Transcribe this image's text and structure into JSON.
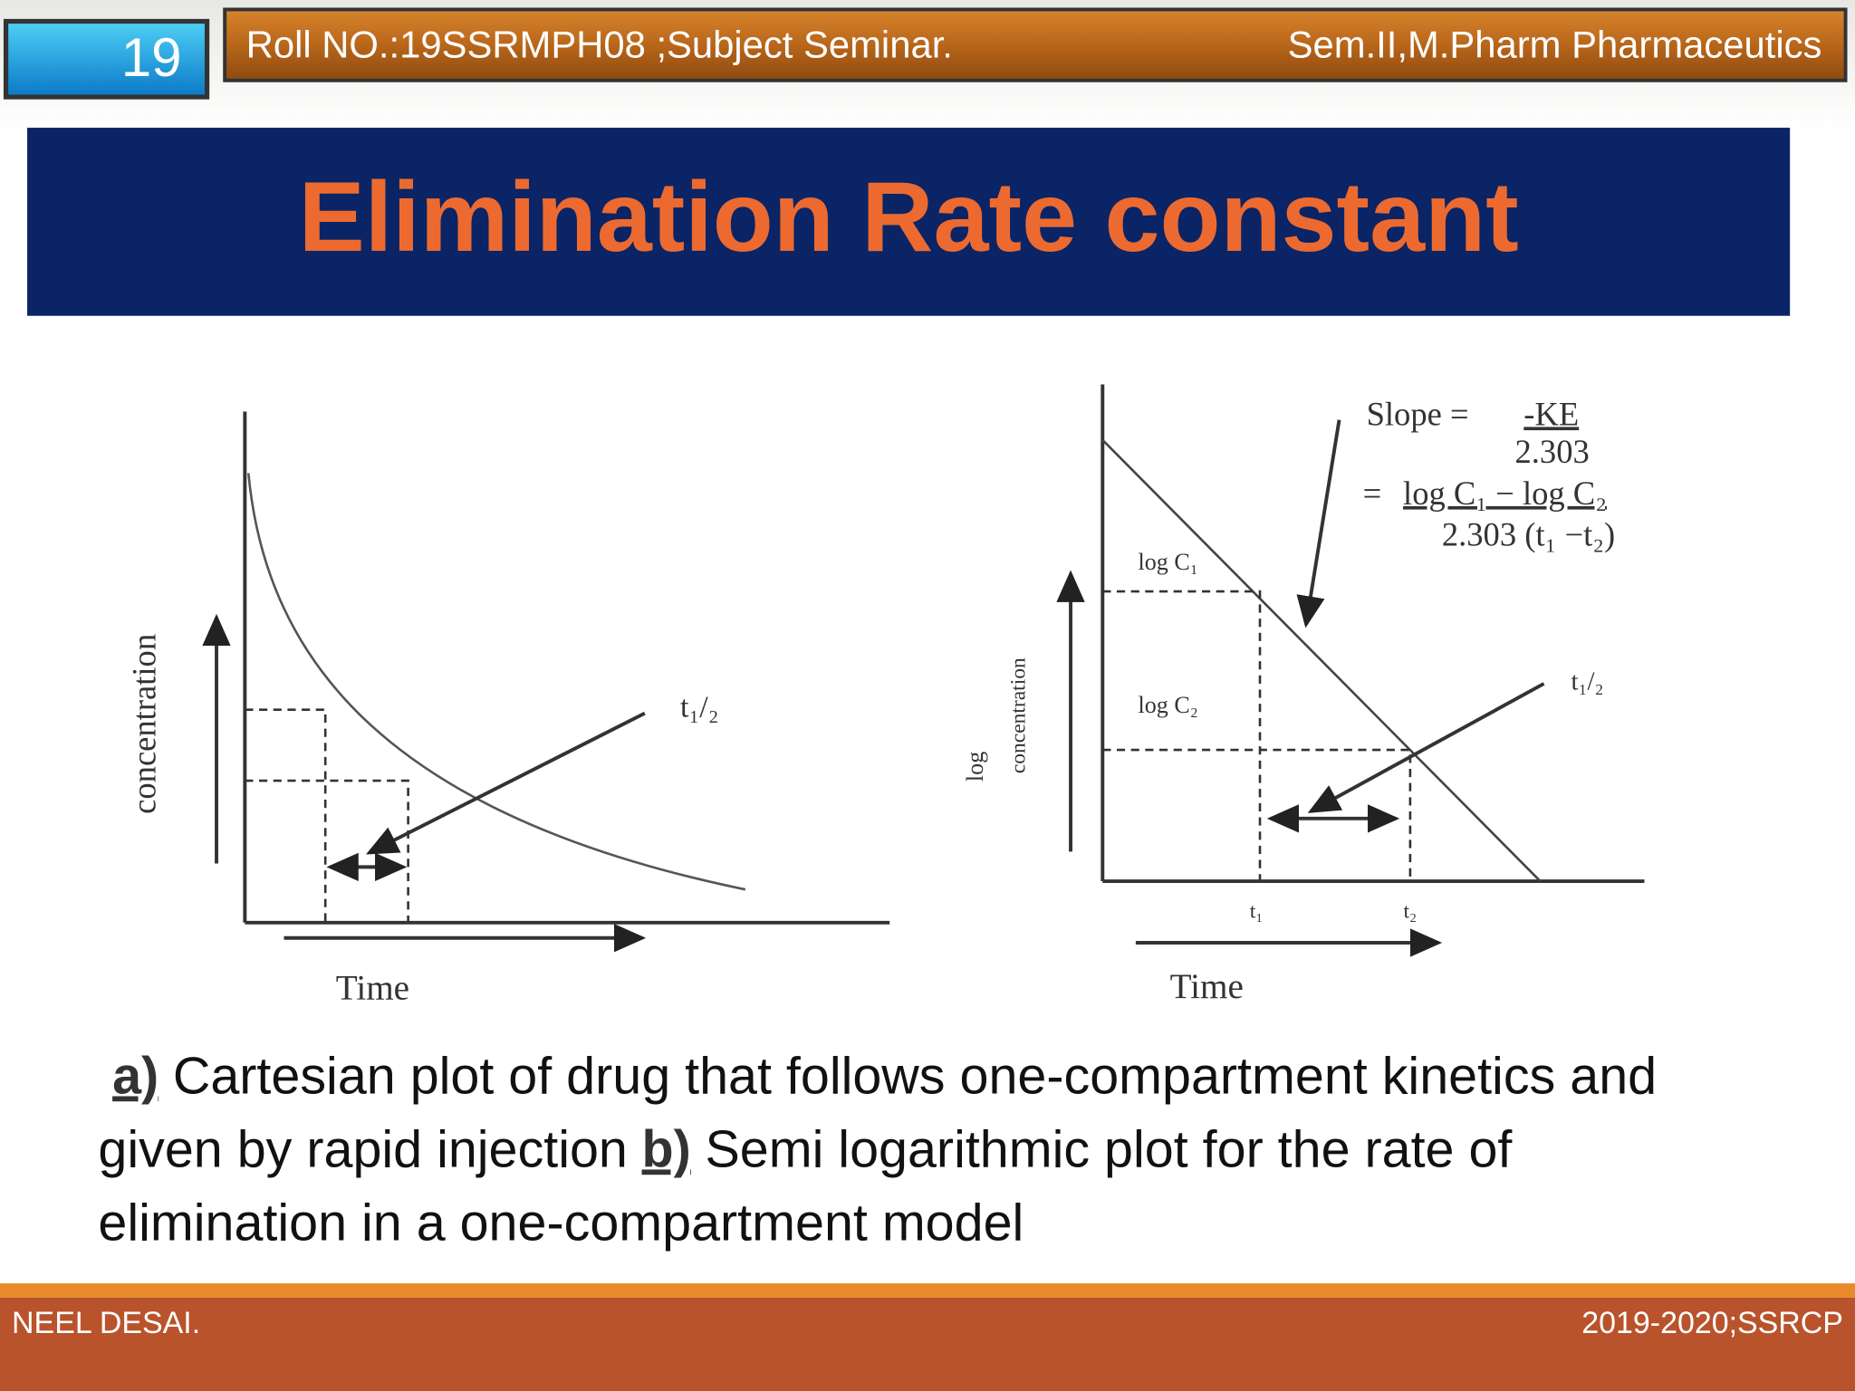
{
  "header": {
    "slide_number": "19",
    "roll": "Roll NO.:19SSRMPH08 ;Subject Seminar.",
    "course": "Sem.II,M.Pharm Pharmaceutics"
  },
  "title": "Elimination Rate constant",
  "figure_a": {
    "y_label": "concentration",
    "x_label": "Time",
    "half_life": "t₁/₂"
  },
  "figure_b": {
    "y_label_1": "log",
    "y_label_2": "concentration",
    "x_label": "Time",
    "half_life": "t₁/₂",
    "level_1": "log C₁",
    "level_2": "log C₂",
    "t_1": "t₁",
    "t_2": "t₂",
    "slope_label": "Slope =",
    "slope_num": "-KE",
    "slope_den": "2.303",
    "equals": "=",
    "slope_num_2": "log C₁ − log C₂",
    "slope_den_2": "2.303 (t₁ −t₂)"
  },
  "caption": {
    "a_label": "a)",
    "a_text_1": "Cartesian plot of drug that follows one-compartment kinetics and",
    "a_text_2": "given by rapid injection",
    "b_label": "b)",
    "b_text_1": "Semi logarithmic plot for the rate of",
    "b_text_2": "elimination in a one-compartment model"
  },
  "footer": {
    "author": "NEEL DESAI.",
    "info": "2019-2020;SSRCP"
  }
}
